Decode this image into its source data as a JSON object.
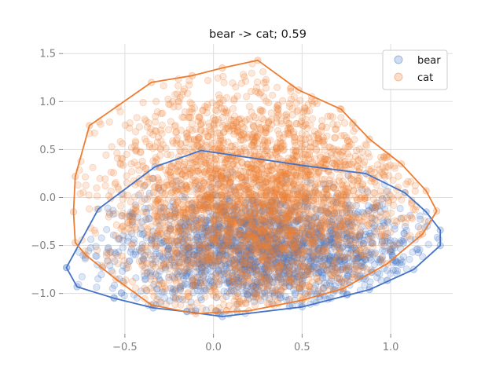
{
  "chart_data": {
    "type": "scatter",
    "title": "bear -> cat; 0.59",
    "xlabel": "",
    "ylabel": "",
    "xlim": [
      -0.85,
      1.35
    ],
    "ylim": [
      -1.42,
      1.6
    ],
    "xticks": [
      -0.5,
      0.0,
      0.5,
      1.0
    ],
    "xtick_labels": [
      "−0.5",
      "0.0",
      "0.5",
      "1.0"
    ],
    "yticks": [
      -1.0,
      -0.5,
      0.0,
      0.5,
      1.0,
      1.5
    ],
    "ytick_labels": [
      "−1.0",
      "−0.5",
      "0.0",
      "0.5",
      "1.0",
      "1.5"
    ],
    "grid": true,
    "legend_position": "top-right",
    "series": [
      {
        "name": "bear",
        "color": "#4472c4",
        "point_count": 2000,
        "hull": [
          [
            -0.83,
            -0.73
          ],
          [
            -0.77,
            -0.93
          ],
          [
            -0.56,
            -1.05
          ],
          [
            -0.34,
            -1.15
          ],
          [
            -0.15,
            -1.19
          ],
          [
            0.05,
            -1.24
          ],
          [
            0.5,
            -1.14
          ],
          [
            0.88,
            -0.96
          ],
          [
            1.13,
            -0.75
          ],
          [
            1.28,
            -0.5
          ],
          [
            1.28,
            -0.34
          ],
          [
            1.2,
            -0.15
          ],
          [
            1.08,
            0.05
          ],
          [
            0.86,
            0.25
          ],
          [
            0.52,
            0.33
          ],
          [
            -0.07,
            0.49
          ],
          [
            -0.33,
            0.32
          ],
          [
            -0.65,
            -0.12
          ]
        ]
      },
      {
        "name": "cat",
        "color": "#ed7d31",
        "point_count": 3000,
        "hull": [
          [
            -0.78,
            -0.47
          ],
          [
            -0.72,
            -0.6
          ],
          [
            -0.55,
            -0.85
          ],
          [
            -0.35,
            -1.12
          ],
          [
            -0.1,
            -1.21
          ],
          [
            0.2,
            -1.18
          ],
          [
            0.5,
            -1.07
          ],
          [
            0.73,
            -0.95
          ],
          [
            0.98,
            -0.69
          ],
          [
            1.18,
            -0.38
          ],
          [
            1.26,
            -0.14
          ],
          [
            1.2,
            0.07
          ],
          [
            1.06,
            0.35
          ],
          [
            0.88,
            0.61
          ],
          [
            0.72,
            0.92
          ],
          [
            0.48,
            1.12
          ],
          [
            0.25,
            1.43
          ],
          [
            0.05,
            1.35
          ],
          [
            -0.12,
            1.27
          ],
          [
            -0.35,
            1.2
          ],
          [
            -0.7,
            0.75
          ],
          [
            -0.78,
            0.22
          ],
          [
            -0.79,
            -0.15
          ]
        ]
      }
    ]
  }
}
